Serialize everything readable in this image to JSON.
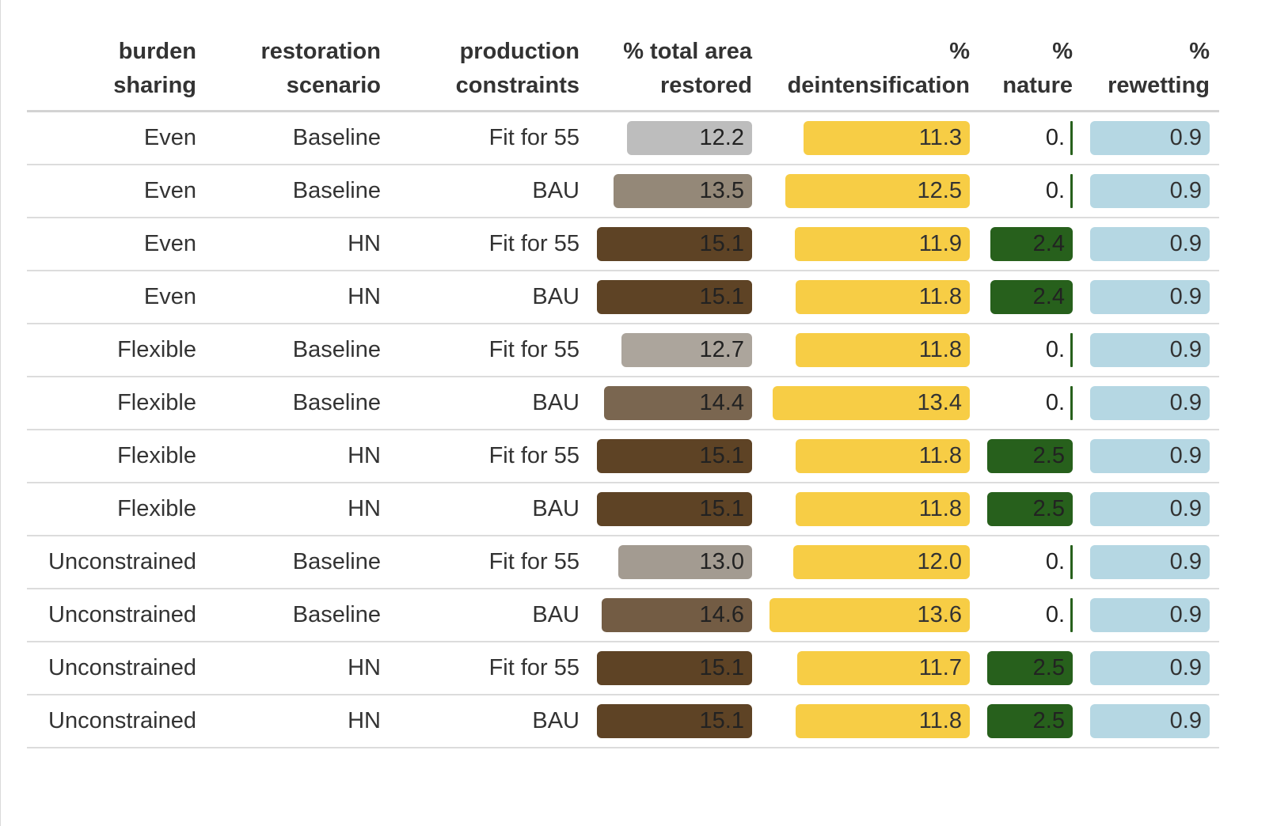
{
  "chart_data": {
    "type": "table",
    "columns": [
      {
        "key": "burden",
        "label_lines": [
          "burden",
          "sharing"
        ]
      },
      {
        "key": "scenario",
        "label_lines": [
          "restoration",
          "scenario"
        ]
      },
      {
        "key": "constraints",
        "label_lines": [
          "production",
          "constraints"
        ]
      },
      {
        "key": "total",
        "label_lines": [
          "% total area",
          "restored"
        ]
      },
      {
        "key": "deint",
        "label_lines": [
          "%",
          "deintensification"
        ]
      },
      {
        "key": "nature",
        "label_lines": [
          "%",
          "nature"
        ]
      },
      {
        "key": "rewet",
        "label_lines": [
          "%",
          "rewetting"
        ]
      }
    ],
    "bar_scales": {
      "total": {
        "min": 0,
        "max": 15.1
      },
      "deint": {
        "min": 0,
        "max": 13.6
      },
      "nature": {
        "min": 0,
        "max": 2.5
      },
      "rewet": {
        "min": 0,
        "max": 0.9
      }
    },
    "colors": {
      "deintensification": "#f7cd45",
      "nature": "#27601c",
      "rewetting": "#b5d7e3",
      "total_low": "#bdbdbd",
      "total_high": "#5e4325"
    },
    "rows": [
      {
        "burden": "Even",
        "scenario": "Baseline",
        "constraints": "Fit for 55",
        "total": 12.2,
        "total_label": "12.2",
        "total_color": "#bdbdbd",
        "deint": 11.3,
        "deint_label": "11.3",
        "nature": 0.0,
        "nature_label": "0.",
        "rewet": 0.9,
        "rewet_label": "0.9"
      },
      {
        "burden": "Even",
        "scenario": "Baseline",
        "constraints": "BAU",
        "total": 13.5,
        "total_label": "13.5",
        "total_color": "#948878",
        "deint": 12.5,
        "deint_label": "12.5",
        "nature": 0.0,
        "nature_label": "0.",
        "rewet": 0.9,
        "rewet_label": "0.9"
      },
      {
        "burden": "Even",
        "scenario": "HN",
        "constraints": "Fit for 55",
        "total": 15.1,
        "total_label": "15.1",
        "total_color": "#5e4325",
        "deint": 11.9,
        "deint_label": "11.9",
        "nature": 2.4,
        "nature_label": "2.4",
        "rewet": 0.9,
        "rewet_label": "0.9"
      },
      {
        "burden": "Even",
        "scenario": "HN",
        "constraints": "BAU",
        "total": 15.1,
        "total_label": "15.1",
        "total_color": "#5e4325",
        "deint": 11.8,
        "deint_label": "11.8",
        "nature": 2.4,
        "nature_label": "2.4",
        "rewet": 0.9,
        "rewet_label": "0.9"
      },
      {
        "burden": "Flexible",
        "scenario": "Baseline",
        "constraints": "Fit for 55",
        "total": 12.7,
        "total_label": "12.7",
        "total_color": "#aca59c",
        "deint": 11.8,
        "deint_label": "11.8",
        "nature": 0.0,
        "nature_label": "0.",
        "rewet": 0.9,
        "rewet_label": "0.9"
      },
      {
        "burden": "Flexible",
        "scenario": "Baseline",
        "constraints": "BAU",
        "total": 14.4,
        "total_label": "14.4",
        "total_color": "#7a6650",
        "deint": 13.4,
        "deint_label": "13.4",
        "nature": 0.0,
        "nature_label": "0.",
        "rewet": 0.9,
        "rewet_label": "0.9"
      },
      {
        "burden": "Flexible",
        "scenario": "HN",
        "constraints": "Fit for 55",
        "total": 15.1,
        "total_label": "15.1",
        "total_color": "#5e4325",
        "deint": 11.8,
        "deint_label": "11.8",
        "nature": 2.5,
        "nature_label": "2.5",
        "rewet": 0.9,
        "rewet_label": "0.9"
      },
      {
        "burden": "Flexible",
        "scenario": "HN",
        "constraints": "BAU",
        "total": 15.1,
        "total_label": "15.1",
        "total_color": "#5e4325",
        "deint": 11.8,
        "deint_label": "11.8",
        "nature": 2.5,
        "nature_label": "2.5",
        "rewet": 0.9,
        "rewet_label": "0.9"
      },
      {
        "burden": "Unconstrained",
        "scenario": "Baseline",
        "constraints": "Fit for 55",
        "total": 13.0,
        "total_label": "13.0",
        "total_color": "#a39b91",
        "deint": 12.0,
        "deint_label": "12.0",
        "nature": 0.0,
        "nature_label": "0.",
        "rewet": 0.9,
        "rewet_label": "0.9"
      },
      {
        "burden": "Unconstrained",
        "scenario": "Baseline",
        "constraints": "BAU",
        "total": 14.6,
        "total_label": "14.6",
        "total_color": "#735c44",
        "deint": 13.6,
        "deint_label": "13.6",
        "nature": 0.0,
        "nature_label": "0.",
        "rewet": 0.9,
        "rewet_label": "0.9"
      },
      {
        "burden": "Unconstrained",
        "scenario": "HN",
        "constraints": "Fit for 55",
        "total": 15.1,
        "total_label": "15.1",
        "total_color": "#5e4325",
        "deint": 11.7,
        "deint_label": "11.7",
        "nature": 2.5,
        "nature_label": "2.5",
        "rewet": 0.9,
        "rewet_label": "0.9"
      },
      {
        "burden": "Unconstrained",
        "scenario": "HN",
        "constraints": "BAU",
        "total": 15.1,
        "total_label": "15.1",
        "total_color": "#5e4325",
        "deint": 11.8,
        "deint_label": "11.8",
        "nature": 2.5,
        "nature_label": "2.5",
        "rewet": 0.9,
        "rewet_label": "0.9"
      }
    ]
  }
}
